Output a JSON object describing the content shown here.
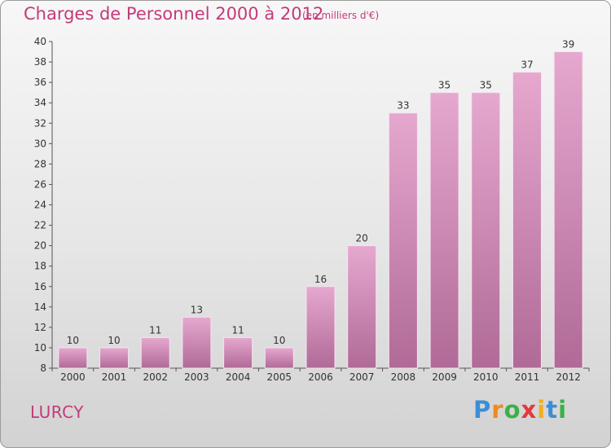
{
  "header": {
    "title": "Charges de Personnel 2000 à 2012",
    "subtitle": "(en milliers d'€)"
  },
  "footer": {
    "place": "LURCY",
    "logo_letters": [
      "P",
      "r",
      "o",
      "x",
      "i",
      "t",
      "i"
    ],
    "logo_colors": [
      "#3a8fd6",
      "#f08a1c",
      "#3bb04a",
      "#e23a3a",
      "#f0b01c",
      "#3a8fd6",
      "#3bb04a"
    ]
  },
  "colors": {
    "bar_top": "#e6a8cf",
    "bar_bottom": "#b06a97",
    "text_accent": "#c43a7a"
  },
  "chart_data": {
    "type": "bar",
    "categories": [
      "2000",
      "2001",
      "2002",
      "2003",
      "2004",
      "2005",
      "2006",
      "2007",
      "2008",
      "2009",
      "2010",
      "2011",
      "2012"
    ],
    "values": [
      10,
      10,
      11,
      13,
      11,
      10,
      16,
      20,
      33,
      35,
      35,
      37,
      39
    ],
    "ylim": [
      8,
      40
    ],
    "yticks": [
      8,
      10,
      12,
      14,
      16,
      18,
      20,
      22,
      24,
      26,
      28,
      30,
      32,
      34,
      36,
      38,
      40
    ],
    "grid": false,
    "data_labels": true
  }
}
